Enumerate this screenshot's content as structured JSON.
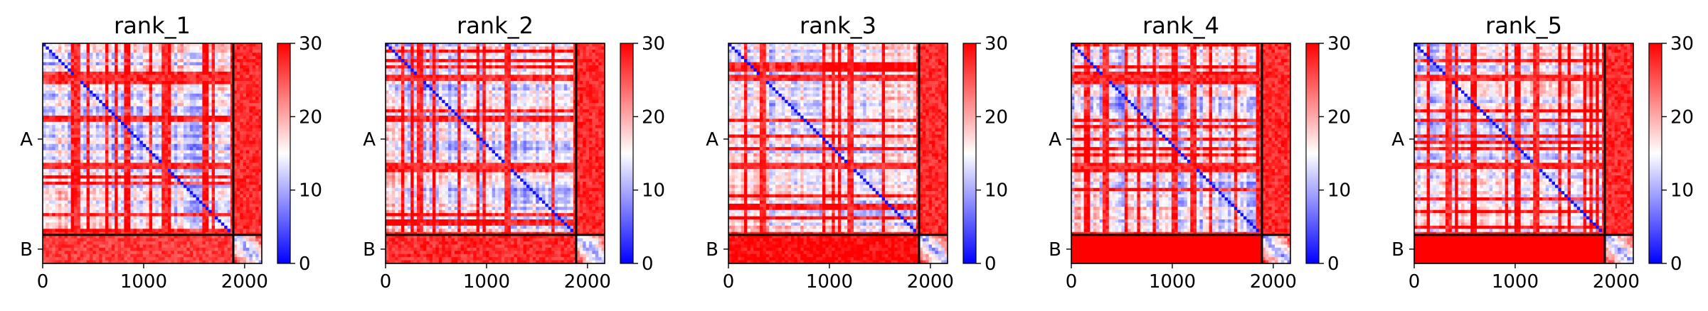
{
  "chart_data": [
    {
      "type": "heatmap",
      "title": "rank_1",
      "x_range": [
        0,
        2170
      ],
      "y_range": [
        0,
        2170
      ],
      "x_ticks": [
        0,
        1000,
        2000
      ],
      "x_tick_labels": [
        "0",
        "1000",
        "2000"
      ],
      "y_categories": [
        "A",
        "B"
      ],
      "chain_boundary": 1888,
      "colorbar": {
        "min": 0,
        "max": 30,
        "ticks": [
          0,
          10,
          20,
          30
        ],
        "tick_labels": [
          "0",
          "10",
          "20",
          "30"
        ],
        "colors": [
          "#0000ff",
          "#ffffff",
          "#ff0000"
        ]
      },
      "chain_B_mean_value": 24,
      "red_bands": [
        [
          300,
          360
        ],
        [
          1180,
          1240
        ],
        [
          1670,
          1720
        ],
        [
          1850,
          2170
        ]
      ]
    },
    {
      "type": "heatmap",
      "title": "rank_2",
      "x_range": [
        0,
        2170
      ],
      "y_range": [
        0,
        2170
      ],
      "x_ticks": [
        0,
        1000,
        2000
      ],
      "x_tick_labels": [
        "0",
        "1000",
        "2000"
      ],
      "y_categories": [
        "A",
        "B"
      ],
      "chain_boundary": 1888,
      "colorbar": {
        "min": 0,
        "max": 30,
        "ticks": [
          0,
          10,
          20,
          30
        ],
        "tick_labels": [
          "0",
          "10",
          "20",
          "30"
        ],
        "colors": [
          "#0000ff",
          "#ffffff",
          "#ff0000"
        ]
      },
      "chain_B_mean_value": 25,
      "red_bands": [
        [
          300,
          360
        ],
        [
          1180,
          1240
        ],
        [
          1850,
          2170
        ]
      ]
    },
    {
      "type": "heatmap",
      "title": "rank_3",
      "x_range": [
        0,
        2170
      ],
      "y_range": [
        0,
        2170
      ],
      "x_ticks": [
        0,
        1000,
        2000
      ],
      "x_tick_labels": [
        "0",
        "1000",
        "2000"
      ],
      "y_categories": [
        "A",
        "B"
      ],
      "chain_boundary": 1888,
      "colorbar": {
        "min": 0,
        "max": 30,
        "ticks": [
          0,
          10,
          20,
          30
        ],
        "tick_labels": [
          "0",
          "10",
          "20",
          "30"
        ],
        "colors": [
          "#0000ff",
          "#ffffff",
          "#ff0000"
        ]
      },
      "chain_B_mean_value": 27,
      "red_bands": [
        [
          300,
          360
        ],
        [
          1180,
          1240
        ],
        [
          1850,
          2170
        ]
      ]
    },
    {
      "type": "heatmap",
      "title": "rank_4",
      "x_range": [
        0,
        2170
      ],
      "y_range": [
        0,
        2170
      ],
      "x_ticks": [
        0,
        1000,
        2000
      ],
      "x_tick_labels": [
        "0",
        "1000",
        "2000"
      ],
      "y_categories": [
        "A",
        "B"
      ],
      "chain_boundary": 1888,
      "colorbar": {
        "min": 0,
        "max": 30,
        "ticks": [
          0,
          10,
          20,
          30
        ],
        "tick_labels": [
          "0",
          "10",
          "20",
          "30"
        ],
        "colors": [
          "#0000ff",
          "#ffffff",
          "#ff0000"
        ]
      },
      "chain_B_mean_value": 30,
      "red_bands": [
        [
          300,
          360
        ],
        [
          1180,
          1240
        ],
        [
          1850,
          2170
        ]
      ]
    },
    {
      "type": "heatmap",
      "title": "rank_5",
      "x_range": [
        0,
        2170
      ],
      "y_range": [
        0,
        2170
      ],
      "x_ticks": [
        0,
        1000,
        2000
      ],
      "x_tick_labels": [
        "0",
        "1000",
        "2000"
      ],
      "y_categories": [
        "A",
        "B"
      ],
      "chain_boundary": 1888,
      "colorbar": {
        "min": 0,
        "max": 30,
        "ticks": [
          0,
          10,
          20,
          30
        ],
        "tick_labels": [
          "0",
          "10",
          "20",
          "30"
        ],
        "colors": [
          "#0000ff",
          "#ffffff",
          "#ff0000"
        ]
      },
      "chain_B_mean_value": 30,
      "red_bands": [
        [
          300,
          360
        ],
        [
          1180,
          1240
        ],
        [
          1850,
          2170
        ]
      ]
    }
  ]
}
